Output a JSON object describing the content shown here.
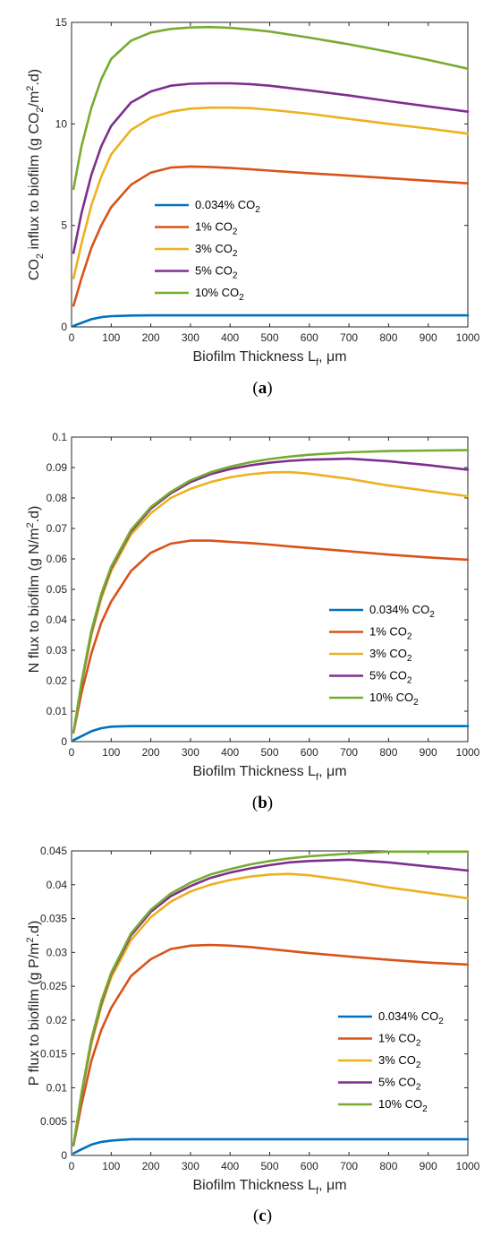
{
  "chart_data": [
    {
      "type": "line",
      "caption": "a",
      "xlabel": "Biofilm Thickness L",
      "xlabel_sub": "f",
      "xlabel_tail": ", μm",
      "ylabel_parts": [
        {
          "t": "CO"
        },
        {
          "t": "2",
          "sub": true
        },
        {
          "t": " influx to biofilm (g CO"
        },
        {
          "t": "2",
          "sub": true
        },
        {
          "t": "/m"
        },
        {
          "t": "2",
          "sup": true
        },
        {
          "t": ".d)"
        }
      ],
      "xlim": [
        0,
        1000
      ],
      "ylim": [
        0,
        15
      ],
      "xticks": [
        0,
        100,
        200,
        300,
        400,
        500,
        600,
        700,
        800,
        900,
        1000
      ],
      "yticks": [
        0,
        5,
        10,
        15
      ],
      "ytick_labels": [
        "0",
        "5",
        "10",
        "15"
      ],
      "legend": {
        "position": "center-left",
        "entries": [
          {
            "label": "0.034% CO",
            "sub": "2"
          },
          {
            "label": "1% CO",
            "sub": "2"
          },
          {
            "label": "3% CO",
            "sub": "2"
          },
          {
            "label": "5% CO",
            "sub": "2"
          },
          {
            "label": "10% CO",
            "sub": "2"
          }
        ]
      },
      "x": [
        5,
        25,
        50,
        75,
        100,
        150,
        200,
        250,
        300,
        350,
        400,
        450,
        500,
        600,
        700,
        800,
        900,
        1000
      ],
      "series": [
        {
          "name": "0.034% CO2",
          "color": "#0072BD",
          "values": [
            0.05,
            0.2,
            0.38,
            0.48,
            0.53,
            0.56,
            0.57,
            0.57,
            0.57,
            0.57,
            0.57,
            0.57,
            0.57,
            0.57,
            0.57,
            0.57,
            0.57,
            0.57
          ]
        },
        {
          "name": "1% CO2",
          "color": "#D95319",
          "values": [
            1.05,
            2.4,
            3.9,
            5.0,
            5.9,
            7.0,
            7.6,
            7.85,
            7.9,
            7.88,
            7.83,
            7.77,
            7.7,
            7.57,
            7.45,
            7.33,
            7.2,
            7.07
          ]
        },
        {
          "name": "3% CO2",
          "color": "#EDB120",
          "values": [
            2.4,
            4.1,
            6.0,
            7.4,
            8.5,
            9.7,
            10.3,
            10.6,
            10.75,
            10.8,
            10.8,
            10.78,
            10.7,
            10.5,
            10.25,
            10.0,
            9.77,
            9.52
          ]
        },
        {
          "name": "5% CO2",
          "color": "#7E2F8E",
          "values": [
            3.65,
            5.6,
            7.5,
            8.9,
            9.9,
            11.05,
            11.6,
            11.88,
            11.98,
            12.0,
            12.0,
            11.96,
            11.88,
            11.65,
            11.4,
            11.12,
            10.86,
            10.6
          ]
        },
        {
          "name": "10% CO2",
          "color": "#77AC30",
          "values": [
            6.8,
            8.9,
            10.8,
            12.2,
            13.2,
            14.1,
            14.5,
            14.68,
            14.75,
            14.77,
            14.73,
            14.65,
            14.55,
            14.25,
            13.92,
            13.55,
            13.15,
            12.72
          ]
        }
      ]
    },
    {
      "type": "line",
      "caption": "b",
      "xlabel": "Biofilm Thickness L",
      "xlabel_sub": "f",
      "xlabel_tail": ", μm",
      "ylabel_parts": [
        {
          "t": "N flux to biofilm (g N/m"
        },
        {
          "t": "2",
          "sup": true
        },
        {
          "t": ".d)"
        }
      ],
      "xlim": [
        0,
        1000
      ],
      "ylim": [
        0,
        0.1
      ],
      "xticks": [
        0,
        100,
        200,
        300,
        400,
        500,
        600,
        700,
        800,
        900,
        1000
      ],
      "yticks": [
        0,
        0.01,
        0.02,
        0.03,
        0.04,
        0.05,
        0.06,
        0.07,
        0.08,
        0.09,
        0.1
      ],
      "ytick_labels": [
        "0",
        "0.01",
        "0.02",
        "0.03",
        "0.04",
        "0.05",
        "0.06",
        "0.07",
        "0.08",
        "0.09",
        "0.1"
      ],
      "legend": {
        "position": "lower-right",
        "entries": [
          {
            "label": "0.034% CO",
            "sub": "2"
          },
          {
            "label": "1% CO",
            "sub": "2"
          },
          {
            "label": "3% CO",
            "sub": "2"
          },
          {
            "label": "5% CO",
            "sub": "2"
          },
          {
            "label": "10% CO",
            "sub": "2"
          }
        ]
      },
      "x": [
        5,
        25,
        50,
        75,
        100,
        150,
        200,
        250,
        300,
        350,
        400,
        450,
        500,
        550,
        600,
        700,
        800,
        900,
        1000
      ],
      "series": [
        {
          "name": "0.034% CO2",
          "color": "#0072BD",
          "values": [
            0.0005,
            0.0018,
            0.0034,
            0.0044,
            0.0049,
            0.0051,
            0.0051,
            0.0051,
            0.0051,
            0.0051,
            0.0051,
            0.0051,
            0.0051,
            0.0051,
            0.0051,
            0.0051,
            0.0051,
            0.0051,
            0.0051
          ]
        },
        {
          "name": "1% CO2",
          "color": "#D95319",
          "values": [
            0.003,
            0.016,
            0.029,
            0.039,
            0.046,
            0.056,
            0.062,
            0.065,
            0.066,
            0.066,
            0.0656,
            0.0652,
            0.0647,
            0.0641,
            0.0636,
            0.0625,
            0.0614,
            0.0605,
            0.0597
          ]
        },
        {
          "name": "3% CO2",
          "color": "#EDB120",
          "values": [
            0.003,
            0.019,
            0.035,
            0.047,
            0.056,
            0.068,
            0.075,
            0.08,
            0.083,
            0.0852,
            0.0868,
            0.0878,
            0.0884,
            0.0885,
            0.088,
            0.0863,
            0.0841,
            0.0823,
            0.0806
          ]
        },
        {
          "name": "5% CO2",
          "color": "#7E2F8E",
          "values": [
            0.003,
            0.019,
            0.036,
            0.048,
            0.057,
            0.069,
            0.0765,
            0.0815,
            0.0852,
            0.0878,
            0.0895,
            0.0907,
            0.0916,
            0.0922,
            0.0926,
            0.0929,
            0.0921,
            0.0908,
            0.0893
          ]
        },
        {
          "name": "10% CO2",
          "color": "#77AC30",
          "values": [
            0.003,
            0.0195,
            0.0365,
            0.0485,
            0.0575,
            0.0695,
            0.077,
            0.082,
            0.0858,
            0.0884,
            0.0903,
            0.0917,
            0.0928,
            0.0936,
            0.0942,
            0.095,
            0.0954,
            0.0956,
            0.0957
          ]
        }
      ]
    },
    {
      "type": "line",
      "caption": "c",
      "xlabel": "Biofilm Thickness L",
      "xlabel_sub": "f",
      "xlabel_tail": ", μm",
      "ylabel_parts": [
        {
          "t": "P flux to biofilm (g P/m"
        },
        {
          "t": "2",
          "sup": true
        },
        {
          "t": ".d)"
        }
      ],
      "xlim": [
        0,
        1000
      ],
      "ylim": [
        0,
        0.045
      ],
      "xticks": [
        0,
        100,
        200,
        300,
        400,
        500,
        600,
        700,
        800,
        900,
        1000
      ],
      "yticks": [
        0,
        0.005,
        0.01,
        0.015,
        0.02,
        0.025,
        0.03,
        0.035,
        0.04,
        0.045
      ],
      "ytick_labels": [
        "0",
        "0.005",
        "0.01",
        "0.015",
        "0.02",
        "0.025",
        "0.03",
        "0.035",
        "0.04",
        "0.045"
      ],
      "legend": {
        "position": "lower-right",
        "entries": [
          {
            "label": "0.034% CO",
            "sub": "2"
          },
          {
            "label": "1% CO",
            "sub": "2"
          },
          {
            "label": "3% CO",
            "sub": "2"
          },
          {
            "label": "5% CO",
            "sub": "2"
          },
          {
            "label": "10% CO",
            "sub": "2"
          }
        ]
      },
      "x": [
        5,
        25,
        50,
        75,
        100,
        150,
        200,
        250,
        300,
        350,
        400,
        450,
        500,
        550,
        600,
        700,
        800,
        900,
        1000
      ],
      "series": [
        {
          "name": "0.034% CO2",
          "color": "#0072BD",
          "values": [
            0.0003,
            0.0009,
            0.0016,
            0.002,
            0.0022,
            0.0024,
            0.0024,
            0.0024,
            0.0024,
            0.0024,
            0.0024,
            0.0024,
            0.0024,
            0.0024,
            0.0024,
            0.0024,
            0.0024,
            0.0024,
            0.0024
          ]
        },
        {
          "name": "1% CO2",
          "color": "#D95319",
          "values": [
            0.0015,
            0.0075,
            0.014,
            0.0185,
            0.0218,
            0.0265,
            0.029,
            0.0305,
            0.031,
            0.0311,
            0.031,
            0.0308,
            0.0305,
            0.0302,
            0.0299,
            0.0294,
            0.0289,
            0.0285,
            0.0282
          ]
        },
        {
          "name": "3% CO2",
          "color": "#EDB120",
          "values": [
            0.0015,
            0.009,
            0.0165,
            0.022,
            0.0263,
            0.0318,
            0.0352,
            0.0375,
            0.039,
            0.04,
            0.0407,
            0.0412,
            0.0415,
            0.0416,
            0.0414,
            0.0406,
            0.0396,
            0.0388,
            0.038
          ]
        },
        {
          "name": "5% CO2",
          "color": "#7E2F8E",
          "values": [
            0.0015,
            0.009,
            0.017,
            0.0225,
            0.0268,
            0.0325,
            0.036,
            0.0383,
            0.0398,
            0.041,
            0.0418,
            0.0424,
            0.0429,
            0.0433,
            0.0435,
            0.0437,
            0.0433,
            0.0427,
            0.0421
          ]
        },
        {
          "name": "10% CO2",
          "color": "#77AC30",
          "values": [
            0.0015,
            0.0092,
            0.0172,
            0.0228,
            0.027,
            0.0328,
            0.0363,
            0.0387,
            0.0403,
            0.0415,
            0.0423,
            0.043,
            0.0435,
            0.0439,
            0.0442,
            0.0446,
            0.0449,
            0.0449,
            0.0449
          ]
        }
      ]
    }
  ]
}
